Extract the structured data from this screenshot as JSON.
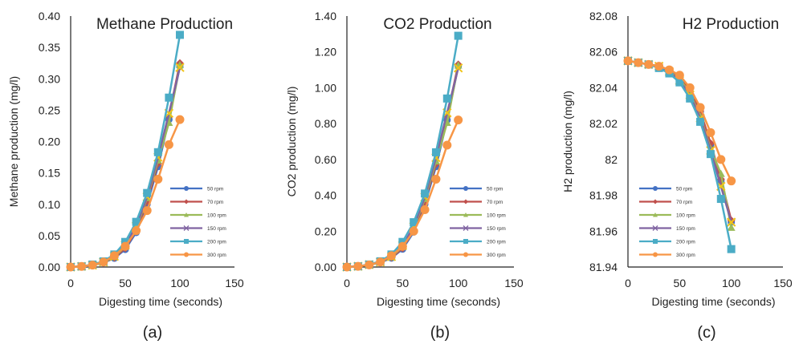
{
  "chart_data": [
    {
      "type": "line",
      "title": "Methane Production",
      "xlabel": "Digesting time (seconds)",
      "ylabel": "Methane production (mg/l)",
      "xlim": [
        0,
        150
      ],
      "ylim": [
        0,
        0.4
      ],
      "xticks": [
        "0",
        "50",
        "100",
        "150"
      ],
      "yticks": [
        "0.00",
        "0.05",
        "0.10",
        "0.15",
        "0.20",
        "0.25",
        "0.30",
        "0.35",
        "0.40"
      ],
      "panel_label": "(a)",
      "legend_position": "lower-right",
      "x": [
        0,
        10,
        20,
        30,
        40,
        50,
        60,
        70,
        80,
        90,
        100
      ],
      "series": [
        {
          "name": "50 rpm",
          "color": "#4472C4",
          "marker": "circle",
          "values": [
            0,
            0.001,
            0.003,
            0.007,
            0.014,
            0.028,
            0.055,
            0.1,
            0.16,
            0.235,
            0.32
          ]
        },
        {
          "name": "70 rpm",
          "color": "#C0504D",
          "marker": "diamond",
          "values": [
            0,
            0.001,
            0.003,
            0.007,
            0.015,
            0.03,
            0.058,
            0.105,
            0.165,
            0.24,
            0.325
          ]
        },
        {
          "name": "100 rpm",
          "color": "#9BBB59",
          "marker": "triangle",
          "values": [
            0,
            0.001,
            0.003,
            0.007,
            0.016,
            0.033,
            0.062,
            0.11,
            0.17,
            0.23,
            0.322
          ]
        },
        {
          "name": "150 rpm",
          "color": "#8064A2",
          "marker": "x",
          "values": [
            0,
            0.001,
            0.003,
            0.008,
            0.017,
            0.035,
            0.065,
            0.112,
            0.175,
            0.245,
            0.318
          ]
        },
        {
          "name": "200 rpm",
          "color": "#4BACC6",
          "marker": "square",
          "values": [
            0,
            0.001,
            0.004,
            0.009,
            0.02,
            0.04,
            0.072,
            0.118,
            0.183,
            0.27,
            0.37
          ]
        },
        {
          "name": "300 rpm",
          "color": "#F79646",
          "marker": "circle",
          "values": [
            0,
            0.001,
            0.003,
            0.008,
            0.018,
            0.033,
            0.058,
            0.09,
            0.14,
            0.195,
            0.235
          ]
        }
      ]
    },
    {
      "type": "line",
      "title": "CO2 Production",
      "xlabel": "Digesting time (seconds)",
      "ylabel": "CO2 production (mg/l)",
      "xlim": [
        0,
        150
      ],
      "ylim": [
        0,
        1.4
      ],
      "xticks": [
        "0",
        "50",
        "100",
        "150"
      ],
      "yticks": [
        "0.00",
        "0.20",
        "0.40",
        "0.60",
        "0.80",
        "1.00",
        "1.20",
        "1.40"
      ],
      "panel_label": "(b)",
      "legend_position": "lower-right",
      "x": [
        0,
        10,
        20,
        30,
        40,
        50,
        60,
        70,
        80,
        90,
        100
      ],
      "series": [
        {
          "name": "50 rpm",
          "color": "#4472C4",
          "marker": "circle",
          "values": [
            0,
            0.004,
            0.012,
            0.025,
            0.05,
            0.1,
            0.195,
            0.35,
            0.56,
            0.82,
            1.12
          ]
        },
        {
          "name": "70 rpm",
          "color": "#C0504D",
          "marker": "diamond",
          "values": [
            0,
            0.004,
            0.012,
            0.026,
            0.053,
            0.105,
            0.205,
            0.365,
            0.575,
            0.84,
            1.13
          ]
        },
        {
          "name": "100 rpm",
          "color": "#9BBB59",
          "marker": "triangle",
          "values": [
            0,
            0.004,
            0.012,
            0.026,
            0.055,
            0.115,
            0.215,
            0.38,
            0.59,
            0.805,
            1.125
          ]
        },
        {
          "name": "150 rpm",
          "color": "#8064A2",
          "marker": "x",
          "values": [
            0,
            0.004,
            0.013,
            0.028,
            0.058,
            0.12,
            0.225,
            0.39,
            0.61,
            0.86,
            1.11
          ]
        },
        {
          "name": "200 rpm",
          "color": "#4BACC6",
          "marker": "square",
          "values": [
            0,
            0.004,
            0.014,
            0.032,
            0.07,
            0.14,
            0.25,
            0.41,
            0.64,
            0.94,
            1.29
          ]
        },
        {
          "name": "300 rpm",
          "color": "#F79646",
          "marker": "circle",
          "values": [
            0,
            0.004,
            0.012,
            0.028,
            0.063,
            0.115,
            0.2,
            0.32,
            0.49,
            0.68,
            0.82
          ]
        }
      ]
    },
    {
      "type": "line",
      "title": "H2 Production",
      "xlabel": "Digesting time (seconds)",
      "ylabel": "H2 production (mg/l)",
      "xlim": [
        0,
        150
      ],
      "ylim": [
        81.94,
        82.08
      ],
      "xticks": [
        "0",
        "50",
        "100",
        "150"
      ],
      "yticks": [
        "81.94",
        "81.96",
        "81.98",
        "82",
        "82.02",
        "82.04",
        "82.06",
        "82.08"
      ],
      "panel_label": "(c)",
      "legend_position": "lower-left",
      "x": [
        0,
        10,
        20,
        30,
        40,
        50,
        60,
        70,
        80,
        90,
        100
      ],
      "series": [
        {
          "name": "50 rpm",
          "color": "#4472C4",
          "marker": "circle",
          "values": [
            82.055,
            82.054,
            82.053,
            82.052,
            82.05,
            82.046,
            82.038,
            82.026,
            82.008,
            81.988,
            81.965
          ]
        },
        {
          "name": "70 rpm",
          "color": "#C0504D",
          "marker": "diamond",
          "values": [
            82.055,
            82.054,
            82.053,
            82.052,
            82.05,
            82.046,
            82.039,
            82.027,
            82.009,
            81.989,
            81.966
          ]
        },
        {
          "name": "100 rpm",
          "color": "#9BBB59",
          "marker": "triangle",
          "values": [
            82.055,
            82.054,
            82.053,
            82.052,
            82.049,
            82.045,
            82.037,
            82.024,
            82.006,
            81.992,
            81.962
          ]
        },
        {
          "name": "150 rpm",
          "color": "#8064A2",
          "marker": "x",
          "values": [
            82.055,
            82.054,
            82.053,
            82.052,
            82.049,
            82.044,
            82.036,
            82.023,
            82.005,
            81.985,
            81.965
          ]
        },
        {
          "name": "200 rpm",
          "color": "#4BACC6",
          "marker": "square",
          "values": [
            82.055,
            82.054,
            82.053,
            82.051,
            82.048,
            82.043,
            82.034,
            82.021,
            82.003,
            81.978,
            81.95
          ]
        },
        {
          "name": "300 rpm",
          "color": "#F79646",
          "marker": "circle",
          "values": [
            82.055,
            82.054,
            82.053,
            82.052,
            82.05,
            82.047,
            82.04,
            82.029,
            82.015,
            82.0,
            81.988
          ]
        }
      ]
    }
  ]
}
